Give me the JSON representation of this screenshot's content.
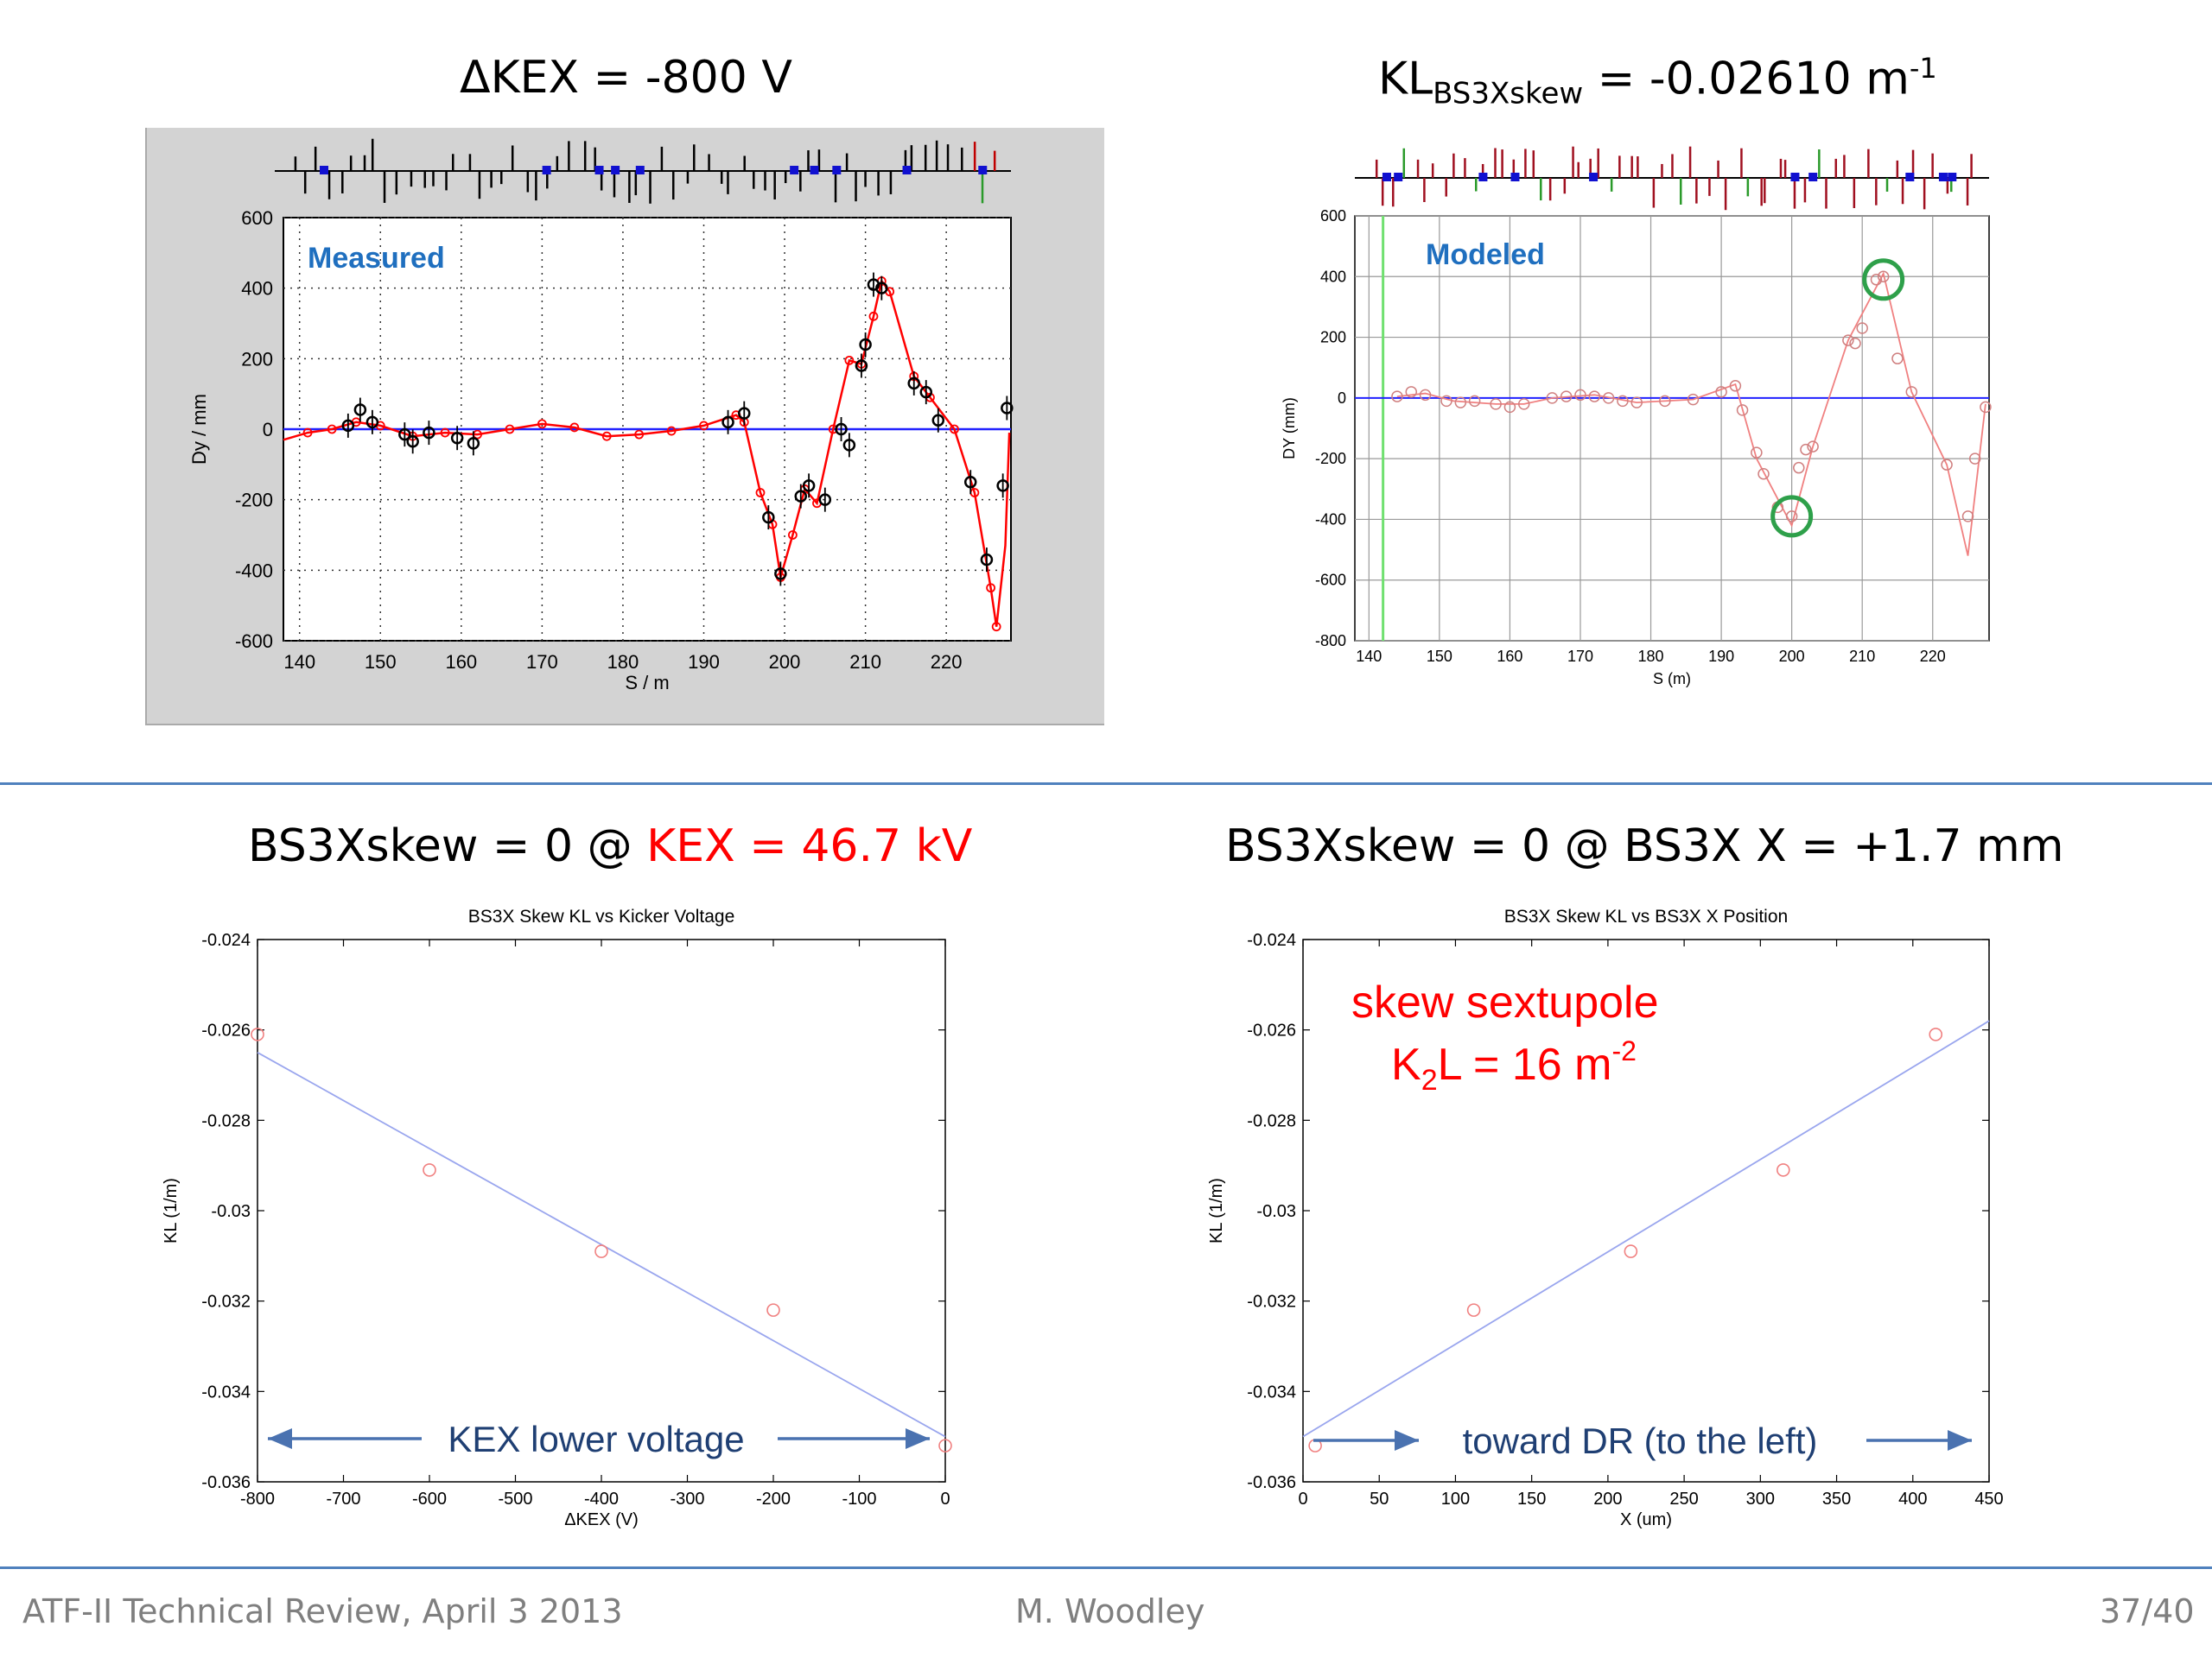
{
  "slide": {
    "panel1_title": "ΔKEX = -800 V",
    "panel2_title_main": "KL",
    "panel2_title_sub": "BS3Xskew",
    "panel2_title_eq": " = -0.02610 m",
    "panel2_title_sup": "-1",
    "panel3_title_a": "BS3Xskew = 0 @ ",
    "panel3_title_b": "KEX = 46.7 kV",
    "panel4_title": "BS3Xskew = 0 @ BS3X X = +1.7 mm",
    "footer_left": "ATF-II Technical Review, April 3 2013",
    "footer_center": "M. Woodley",
    "footer_right": "37/40",
    "arrow3_label": "KEX lower voltage",
    "arrow4_label": "toward DR (to the left)",
    "note_line1": "skew sextupole",
    "note_k": "K",
    "note_sub": "2",
    "note_eq": "L = 16 m",
    "note_sup": "-2"
  },
  "colors": {
    "accent_red": "#ff0000",
    "rule_blue": "#4f81bd",
    "label_blue": "#1f6fbf",
    "arrow_blue": "#4a72b0",
    "fit_blue": "#9aa6ee",
    "model_green": "#2ea04a"
  },
  "chart_data": [
    {
      "type": "line",
      "label": "Measured",
      "xlabel": "S / m",
      "ylabel": "Dy / mm",
      "xlim": [
        138,
        228
      ],
      "ylim": [
        -600,
        600
      ],
      "xticks": [
        "140",
        "150",
        "160",
        "170",
        "180",
        "190",
        "200",
        "210",
        "220"
      ],
      "yticks": [
        "600",
        "400",
        "200",
        "0",
        "-200",
        "-400",
        "-600"
      ],
      "grid": true,
      "measured_points": [
        {
          "x": 146,
          "y": 10
        },
        {
          "x": 147.5,
          "y": 55
        },
        {
          "x": 149,
          "y": 20
        },
        {
          "x": 153,
          "y": -15
        },
        {
          "x": 154,
          "y": -35
        },
        {
          "x": 156,
          "y": -10
        },
        {
          "x": 159.5,
          "y": -25
        },
        {
          "x": 161.5,
          "y": -40
        },
        {
          "x": 193,
          "y": 20
        },
        {
          "x": 195,
          "y": 45
        },
        {
          "x": 198,
          "y": -250
        },
        {
          "x": 199.5,
          "y": -410
        },
        {
          "x": 202,
          "y": -190
        },
        {
          "x": 203,
          "y": -160
        },
        {
          "x": 205,
          "y": -200
        },
        {
          "x": 207,
          "y": 0
        },
        {
          "x": 208,
          "y": -45
        },
        {
          "x": 209.5,
          "y": 180
        },
        {
          "x": 210,
          "y": 240
        },
        {
          "x": 211,
          "y": 410
        },
        {
          "x": 212,
          "y": 400
        },
        {
          "x": 216,
          "y": 130
        },
        {
          "x": 217.5,
          "y": 105
        },
        {
          "x": 219,
          "y": 25
        },
        {
          "x": 223,
          "y": -150
        },
        {
          "x": 225,
          "y": -370
        },
        {
          "x": 227,
          "y": -160
        },
        {
          "x": 227.5,
          "y": 60
        }
      ],
      "model_line": [
        {
          "x": 138,
          "y": -30
        },
        {
          "x": 141,
          "y": -10
        },
        {
          "x": 144,
          "y": 0
        },
        {
          "x": 147,
          "y": 20
        },
        {
          "x": 150,
          "y": 10
        },
        {
          "x": 154,
          "y": -20
        },
        {
          "x": 158,
          "y": -10
        },
        {
          "x": 162,
          "y": -15
        },
        {
          "x": 166,
          "y": 0
        },
        {
          "x": 170,
          "y": 15
        },
        {
          "x": 174,
          "y": 5
        },
        {
          "x": 178,
          "y": -20
        },
        {
          "x": 182,
          "y": -15
        },
        {
          "x": 186,
          "y": -5
        },
        {
          "x": 190,
          "y": 10
        },
        {
          "x": 194,
          "y": 40
        },
        {
          "x": 195,
          "y": 20
        },
        {
          "x": 197,
          "y": -180
        },
        {
          "x": 198.5,
          "y": -270
        },
        {
          "x": 199.5,
          "y": -420
        },
        {
          "x": 201,
          "y": -300
        },
        {
          "x": 202.5,
          "y": -170
        },
        {
          "x": 204,
          "y": -210
        },
        {
          "x": 206,
          "y": 0
        },
        {
          "x": 208,
          "y": 195
        },
        {
          "x": 209.5,
          "y": 185
        },
        {
          "x": 211,
          "y": 320
        },
        {
          "x": 212,
          "y": 420
        },
        {
          "x": 213,
          "y": 390
        },
        {
          "x": 216,
          "y": 150
        },
        {
          "x": 218,
          "y": 90
        },
        {
          "x": 221,
          "y": 0
        },
        {
          "x": 223.5,
          "y": -180
        },
        {
          "x": 225.5,
          "y": -450
        },
        {
          "x": 226.2,
          "y": -560
        },
        {
          "x": 227.3,
          "y": -330
        },
        {
          "x": 227.8,
          "y": -10
        }
      ],
      "zero_line": 0
    },
    {
      "type": "line",
      "label": "Modeled",
      "xlabel": "S (m)",
      "ylabel": "DY (mm)",
      "xlim": [
        138,
        228
      ],
      "ylim": [
        -800,
        600
      ],
      "xticks": [
        "140",
        "150",
        "160",
        "170",
        "180",
        "190",
        "200",
        "210",
        "220"
      ],
      "yticks": [
        "600",
        "400",
        "200",
        "0",
        "-200",
        "-400",
        "-600",
        "-800"
      ],
      "grid": true,
      "green_marker_x": 142,
      "model_points": [
        {
          "x": 144,
          "y": 5
        },
        {
          "x": 146,
          "y": 20
        },
        {
          "x": 148,
          "y": 10
        },
        {
          "x": 151,
          "y": -10
        },
        {
          "x": 153,
          "y": -15
        },
        {
          "x": 155,
          "y": -10
        },
        {
          "x": 158,
          "y": -20
        },
        {
          "x": 160,
          "y": -30
        },
        {
          "x": 162,
          "y": -20
        },
        {
          "x": 166,
          "y": 0
        },
        {
          "x": 168,
          "y": 5
        },
        {
          "x": 170,
          "y": 10
        },
        {
          "x": 172,
          "y": 5
        },
        {
          "x": 174,
          "y": 0
        },
        {
          "x": 176,
          "y": -10
        },
        {
          "x": 178,
          "y": -15
        },
        {
          "x": 182,
          "y": -10
        },
        {
          "x": 186,
          "y": -5
        },
        {
          "x": 190,
          "y": 20
        },
        {
          "x": 192,
          "y": 40
        },
        {
          "x": 193,
          "y": -40
        },
        {
          "x": 195,
          "y": -180
        },
        {
          "x": 196,
          "y": -250
        },
        {
          "x": 198,
          "y": -360
        },
        {
          "x": 200,
          "y": -390
        },
        {
          "x": 201,
          "y": -230
        },
        {
          "x": 202,
          "y": -170
        },
        {
          "x": 203,
          "y": -160
        },
        {
          "x": 208,
          "y": 190
        },
        {
          "x": 209,
          "y": 180
        },
        {
          "x": 210,
          "y": 230
        },
        {
          "x": 212,
          "y": 390
        },
        {
          "x": 213,
          "y": 400
        },
        {
          "x": 215,
          "y": 130
        },
        {
          "x": 217,
          "y": 20
        },
        {
          "x": 222,
          "y": -220
        },
        {
          "x": 225,
          "y": -390
        },
        {
          "x": 226,
          "y": -200
        },
        {
          "x": 227.5,
          "y": -30
        }
      ],
      "model_line": [
        {
          "x": 144,
          "y": 5
        },
        {
          "x": 148,
          "y": 15
        },
        {
          "x": 152,
          "y": -10
        },
        {
          "x": 158,
          "y": -20
        },
        {
          "x": 162,
          "y": -20
        },
        {
          "x": 166,
          "y": 0
        },
        {
          "x": 172,
          "y": 10
        },
        {
          "x": 178,
          "y": -15
        },
        {
          "x": 186,
          "y": -5
        },
        {
          "x": 192,
          "y": 45
        },
        {
          "x": 195,
          "y": -200
        },
        {
          "x": 200,
          "y": -420
        },
        {
          "x": 203,
          "y": -160
        },
        {
          "x": 208,
          "y": 190
        },
        {
          "x": 213,
          "y": 410
        },
        {
          "x": 217,
          "y": 20
        },
        {
          "x": 222,
          "y": -220
        },
        {
          "x": 225,
          "y": -520
        },
        {
          "x": 227.5,
          "y": -20
        }
      ],
      "circled": [
        {
          "x": 200,
          "y": -390
        },
        {
          "x": 213,
          "y": 390
        }
      ],
      "zero_line": 0
    },
    {
      "type": "scatter",
      "title": "BS3X Skew KL vs Kicker Voltage",
      "xlabel": "ΔKEX (V)",
      "ylabel": "KL (1/m)",
      "xlim": [
        -800,
        0
      ],
      "ylim": [
        -0.036,
        -0.024
      ],
      "xticks": [
        "-800",
        "-700",
        "-600",
        "-500",
        "-400",
        "-300",
        "-200",
        "-100",
        "0"
      ],
      "yticks": [
        "-0.024",
        "-0.026",
        "-0.028",
        "-0.03",
        "-0.032",
        "-0.034",
        "-0.036"
      ],
      "points": [
        {
          "x": -800,
          "y": -0.0261
        },
        {
          "x": -600,
          "y": -0.0291
        },
        {
          "x": -400,
          "y": -0.0309
        },
        {
          "x": -200,
          "y": -0.0322
        },
        {
          "x": 0,
          "y": -0.0352
        }
      ],
      "fit_line": [
        {
          "x": -800,
          "y": -0.0265
        },
        {
          "x": 0,
          "y": -0.035
        }
      ]
    },
    {
      "type": "scatter",
      "title": "BS3X Skew KL vs BS3X X Position",
      "xlabel": "X (um)",
      "ylabel": "KL (1/m)",
      "xlim": [
        0,
        450
      ],
      "ylim": [
        -0.036,
        -0.024
      ],
      "xticks": [
        "0",
        "50",
        "100",
        "150",
        "200",
        "250",
        "300",
        "350",
        "400",
        "450"
      ],
      "yticks": [
        "-0.024",
        "-0.026",
        "-0.028",
        "-0.03",
        "-0.032",
        "-0.034",
        "-0.036"
      ],
      "points": [
        {
          "x": 8,
          "y": -0.0352
        },
        {
          "x": 112,
          "y": -0.0322
        },
        {
          "x": 215,
          "y": -0.0309
        },
        {
          "x": 315,
          "y": -0.0291
        },
        {
          "x": 415,
          "y": -0.0261
        }
      ],
      "fit_line": [
        {
          "x": 0,
          "y": -0.035
        },
        {
          "x": 450,
          "y": -0.0258
        }
      ]
    }
  ]
}
